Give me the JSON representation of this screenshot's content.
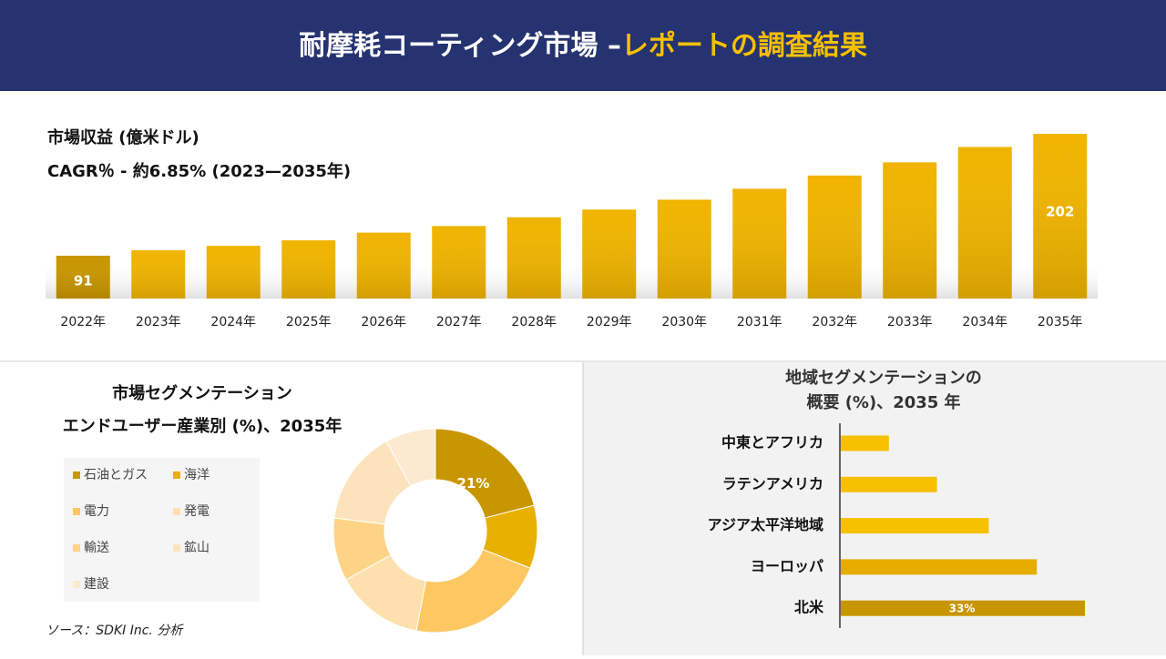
{
  "header": {
    "title": "耐摩耗コーティング市場 –",
    "title_highlight": "レポートの調査結果"
  },
  "source": "ソース：SDKI Inc. 分析",
  "chart_data": [
    {
      "type": "bar",
      "title": "市場収益 (億米ドル)",
      "subtitle": "CAGR％ - 約6.85% (2023—2035年)",
      "categories": [
        "2022年",
        "2023年",
        "2024年",
        "2025年",
        "2026年",
        "2027年",
        "2028年",
        "2029年",
        "2030年",
        "2031年",
        "2032年",
        "2033年",
        "2034年",
        "2035年"
      ],
      "values": [
        91,
        96,
        100,
        105,
        112,
        118,
        126,
        133,
        142,
        152,
        164,
        176,
        190,
        202
      ],
      "value_labels": [
        "91",
        null,
        null,
        null,
        null,
        null,
        null,
        null,
        null,
        null,
        null,
        null,
        null,
        "202"
      ],
      "color": "#f0b400",
      "ylim": [
        52,
        202
      ]
    },
    {
      "type": "donut",
      "title": "市場セグメンテーション",
      "subtitle": "エンドユーザー産業別 (%)、2035年",
      "categories": [
        "石油とガス",
        "海洋",
        "電力",
        "発電",
        "輸送",
        "鉱山",
        "建設"
      ],
      "values": [
        21,
        10,
        22,
        14,
        10,
        15,
        8
      ],
      "value_labels": [
        "21%",
        null,
        null,
        null,
        null,
        null,
        null
      ],
      "colors": [
        "#c89600",
        "#e8b000",
        "#fdc862",
        "#fde0ad",
        "#fdd486",
        "#fde3bd",
        "#fde9d0"
      ]
    },
    {
      "type": "hbar",
      "title": "地域セグメンテーションの",
      "subtitle": "概要 (%)、2035 年",
      "categories": [
        "中東とアフリカ",
        "ラテンアメリカ",
        "アジア太平洋地域",
        "ヨーロッパ",
        "北米"
      ],
      "values": [
        6.5,
        13,
        20,
        26.5,
        33
      ],
      "value_labels": [
        null,
        null,
        null,
        null,
        "33%"
      ],
      "colors": [
        "#f7c000",
        "#f7c000",
        "#f7c000",
        "#e6ac00",
        "#c89600"
      ],
      "xlim": [
        0,
        33
      ]
    }
  ]
}
